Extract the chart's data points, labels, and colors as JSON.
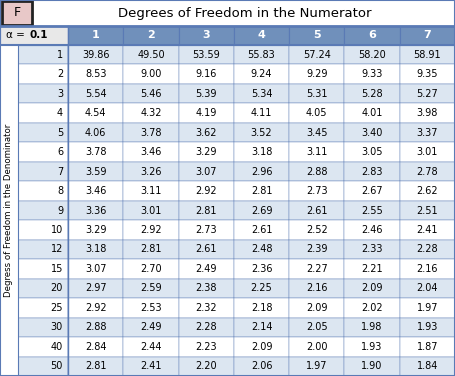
{
  "title": "Degrees of Freedom in the Numerator",
  "alpha_label": "α = ",
  "alpha_value": "0.1",
  "col_headers": [
    "1",
    "2",
    "3",
    "4",
    "5",
    "6",
    "7"
  ],
  "row_headers": [
    "1",
    "2",
    "3",
    "4",
    "5",
    "6",
    "7",
    "8",
    "9",
    "10",
    "12",
    "15",
    "20",
    "25",
    "30",
    "40",
    "50"
  ],
  "row_label": "Degress of Freedom in the Denominator",
  "f_label": "F",
  "data": [
    [
      39.86,
      49.5,
      53.59,
      55.83,
      57.24,
      58.2,
      58.91
    ],
    [
      8.53,
      9.0,
      9.16,
      9.24,
      9.29,
      9.33,
      9.35
    ],
    [
      5.54,
      5.46,
      5.39,
      5.34,
      5.31,
      5.28,
      5.27
    ],
    [
      4.54,
      4.32,
      4.19,
      4.11,
      4.05,
      4.01,
      3.98
    ],
    [
      4.06,
      3.78,
      3.62,
      3.52,
      3.45,
      3.4,
      3.37
    ],
    [
      3.78,
      3.46,
      3.29,
      3.18,
      3.11,
      3.05,
      3.01
    ],
    [
      3.59,
      3.26,
      3.07,
      2.96,
      2.88,
      2.83,
      2.78
    ],
    [
      3.46,
      3.11,
      2.92,
      2.81,
      2.73,
      2.67,
      2.62
    ],
    [
      3.36,
      3.01,
      2.81,
      2.69,
      2.61,
      2.55,
      2.51
    ],
    [
      3.29,
      2.92,
      2.73,
      2.61,
      2.52,
      2.46,
      2.41
    ],
    [
      3.18,
      2.81,
      2.61,
      2.48,
      2.39,
      2.33,
      2.28
    ],
    [
      3.07,
      2.7,
      2.49,
      2.36,
      2.27,
      2.21,
      2.16
    ],
    [
      2.97,
      2.59,
      2.38,
      2.25,
      2.16,
      2.09,
      2.04
    ],
    [
      2.92,
      2.53,
      2.32,
      2.18,
      2.09,
      2.02,
      1.97
    ],
    [
      2.88,
      2.49,
      2.28,
      2.14,
      2.05,
      1.98,
      1.93
    ],
    [
      2.84,
      2.44,
      2.23,
      2.09,
      2.0,
      1.93,
      1.87
    ],
    [
      2.81,
      2.41,
      2.2,
      2.06,
      1.97,
      1.9,
      1.84
    ]
  ],
  "color_header_bg": "#7090bb",
  "color_row_even": "#dce6f1",
  "color_row_odd": "#ffffff",
  "color_alpha_bg": "#e8e8e8",
  "color_border": "#5a7ab5",
  "color_f_bg": "#e8c8c8",
  "color_title_bg": "#ffffff",
  "figsize": [
    4.55,
    3.76
  ],
  "dpi": 100
}
